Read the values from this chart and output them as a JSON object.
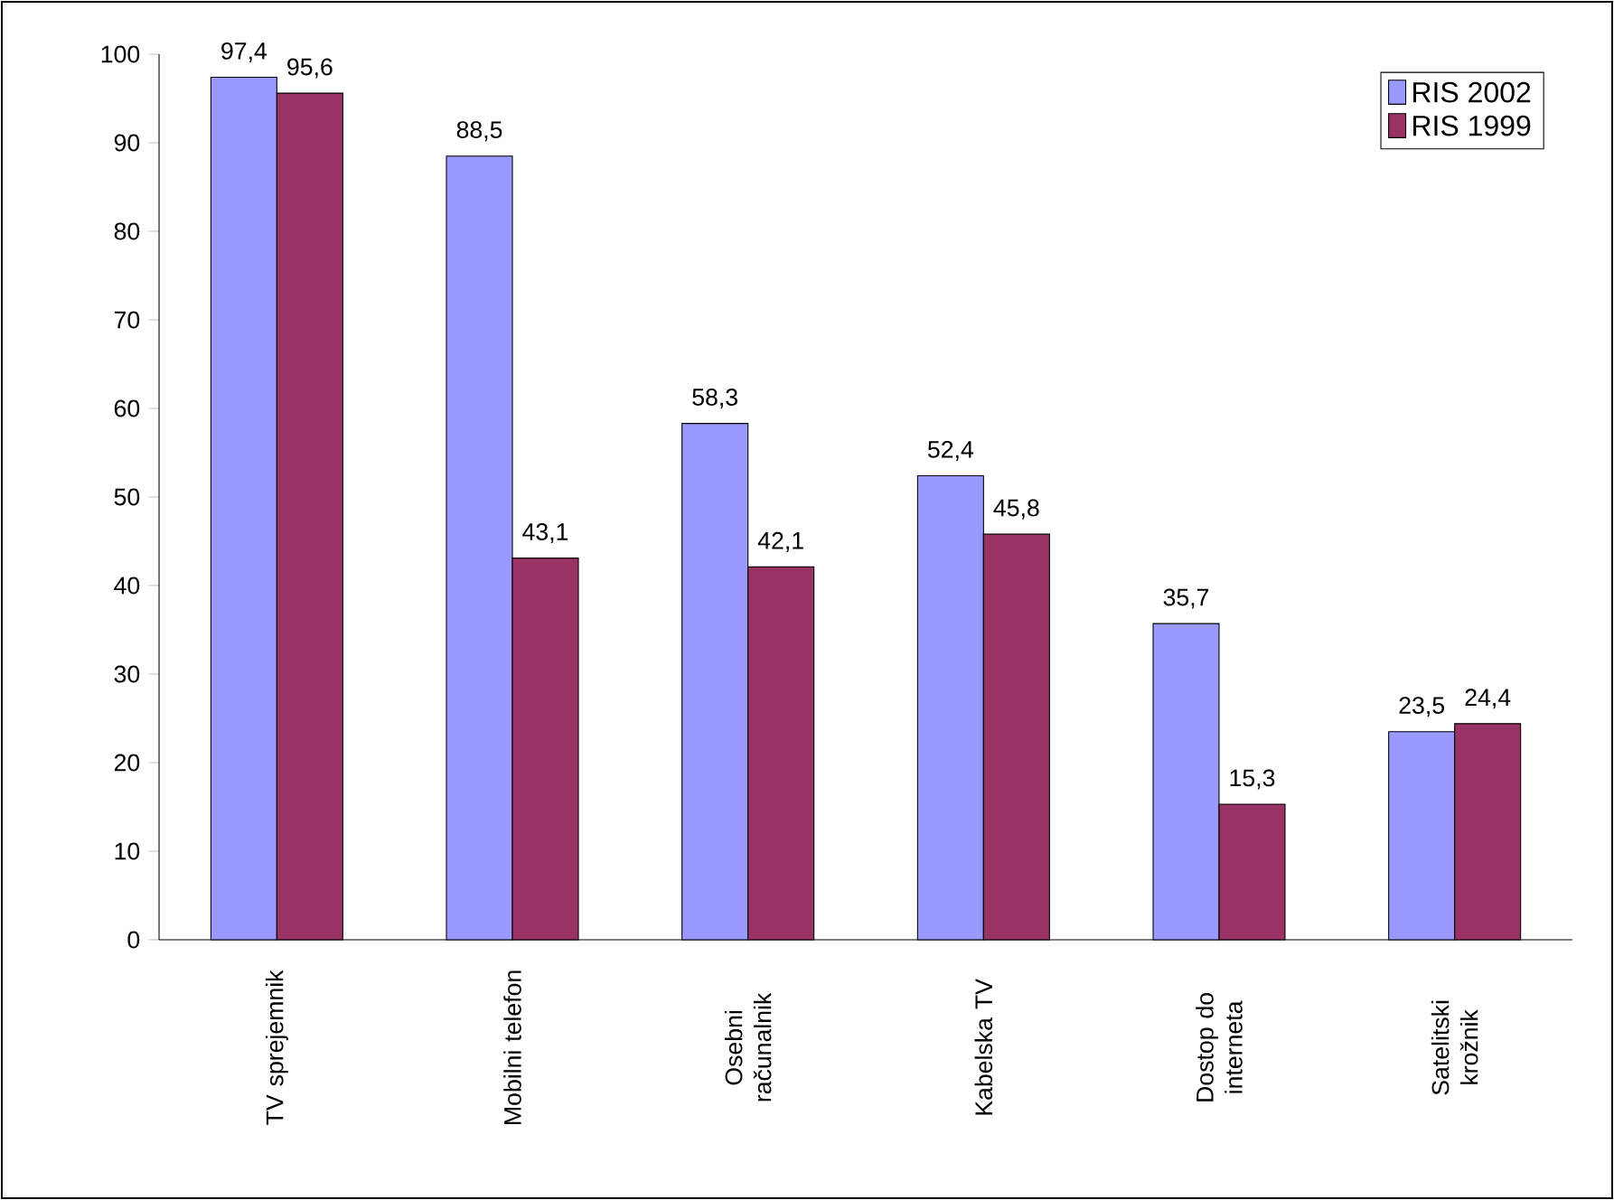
{
  "chart_data": {
    "type": "bar",
    "categories": [
      "TV sprejemnik",
      "Mobilni telefon",
      "Osebni računalnik",
      "Kabelska TV",
      "Dostop do interneta",
      "Satelitski krožnik"
    ],
    "series": [
      {
        "name": "RIS 2002",
        "color": "#9999ff",
        "values": [
          97.4,
          88.5,
          58.3,
          52.4,
          35.7,
          23.5
        ],
        "value_labels": [
          "97,4",
          "88,5",
          "58,3",
          "52,4",
          "35,7",
          "23,5"
        ]
      },
      {
        "name": "RIS 1999",
        "color": "#993366",
        "values": [
          95.6,
          43.1,
          42.1,
          45.8,
          15.3,
          24.4
        ],
        "value_labels": [
          "95,6",
          "43,1",
          "42,1",
          "45,8",
          "15,3",
          "24,4"
        ]
      }
    ],
    "ylim": [
      0,
      100
    ],
    "yticks": [
      0,
      10,
      20,
      30,
      40,
      50,
      60,
      70,
      80,
      90,
      100
    ],
    "legend": "top right"
  }
}
